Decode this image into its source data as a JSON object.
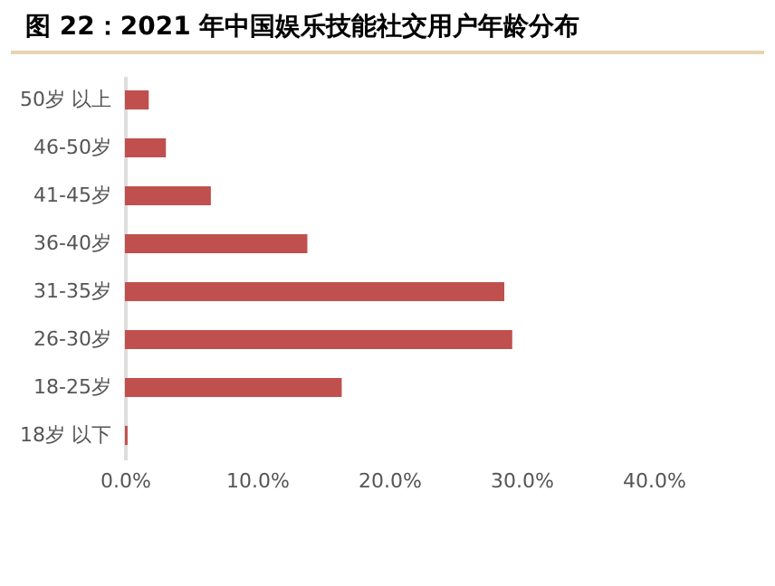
{
  "chart_data": {
    "type": "bar",
    "orientation": "horizontal",
    "title": "图 22：2021 年中国娱乐技能社交用户年龄分布",
    "categories": [
      "50岁 以上",
      "46-50岁",
      "41-45岁",
      "36-40岁",
      "31-35岁",
      "26-30岁",
      "18-25岁",
      "18岁 以下"
    ],
    "values": [
      1.8,
      3.1,
      6.5,
      13.8,
      28.7,
      29.3,
      16.4,
      0.2
    ],
    "color": "#c0504d",
    "xlim": [
      0,
      40
    ],
    "xticks": [
      {
        "value": 0,
        "label": "0.0%"
      },
      {
        "value": 10,
        "label": "10.0%"
      },
      {
        "value": 20,
        "label": "20.0%"
      },
      {
        "value": 30,
        "label": "30.0%"
      },
      {
        "value": 40,
        "label": "40.0%"
      }
    ],
    "grid": false
  }
}
